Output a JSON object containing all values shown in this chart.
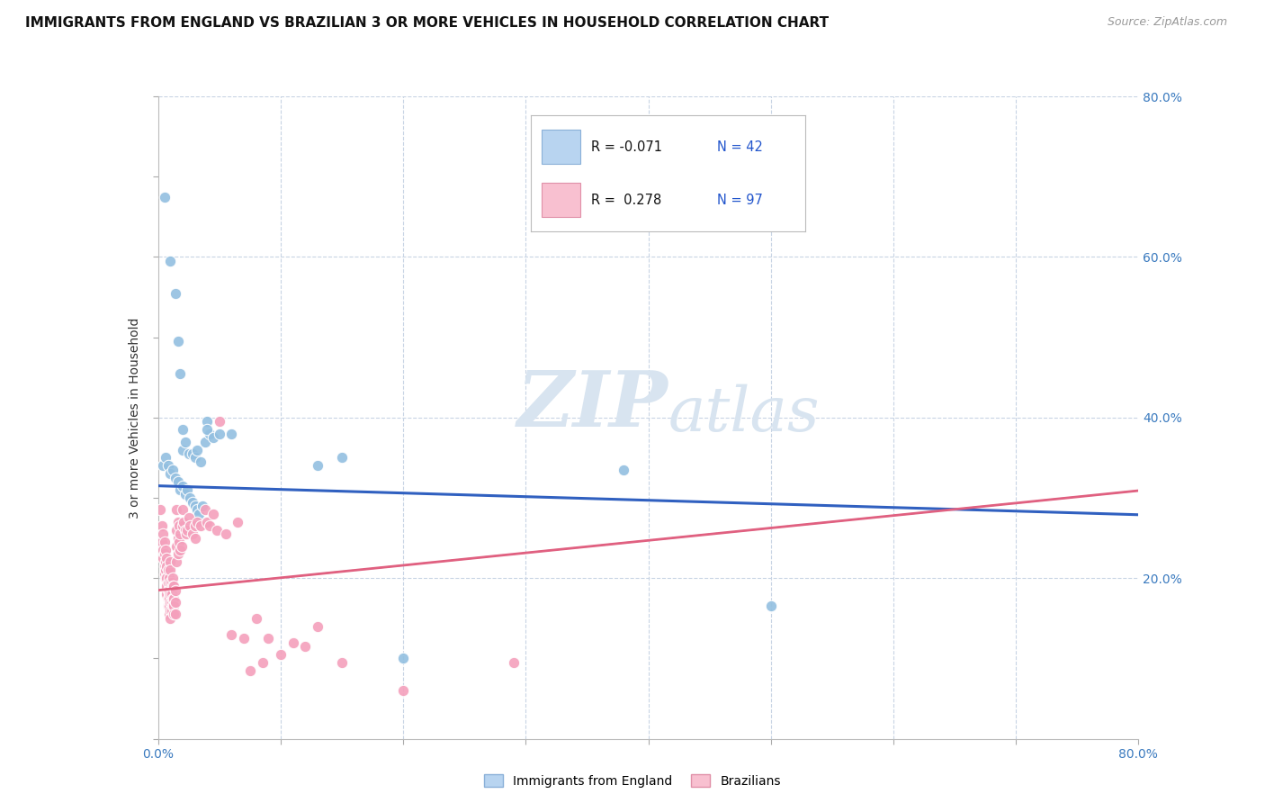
{
  "title": "IMMIGRANTS FROM ENGLAND VS BRAZILIAN 3 OR MORE VEHICLES IN HOUSEHOLD CORRELATION CHART",
  "source_text": "Source: ZipAtlas.com",
  "ylabel": "3 or more Vehicles in Household",
  "xlim": [
    0.0,
    0.8
  ],
  "ylim": [
    0.0,
    0.8
  ],
  "england_color": "#92bfe0",
  "brazil_color": "#f4a0bc",
  "england_line_color": "#3060c0",
  "brazil_line_color": "#e06080",
  "brazil_dash_color": "#d0a0b0",
  "watermark_zip": "ZIP",
  "watermark_atlas": "atlas",
  "watermark_color": "#d8e4f0",
  "background_color": "#ffffff",
  "grid_color": "#c8d4e4",
  "england_R": -0.071,
  "england_N": 42,
  "brazil_R": 0.278,
  "brazil_N": 97,
  "eng_intercept": 0.315,
  "eng_slope": -0.045,
  "bra_intercept": 0.185,
  "bra_slope": 0.155,
  "england_points": [
    [
      0.005,
      0.675
    ],
    [
      0.01,
      0.595
    ],
    [
      0.014,
      0.555
    ],
    [
      0.016,
      0.495
    ],
    [
      0.018,
      0.455
    ],
    [
      0.02,
      0.385
    ],
    [
      0.02,
      0.36
    ],
    [
      0.022,
      0.37
    ],
    [
      0.025,
      0.355
    ],
    [
      0.028,
      0.355
    ],
    [
      0.03,
      0.35
    ],
    [
      0.032,
      0.36
    ],
    [
      0.035,
      0.345
    ],
    [
      0.038,
      0.37
    ],
    [
      0.04,
      0.395
    ],
    [
      0.042,
      0.38
    ],
    [
      0.004,
      0.34
    ],
    [
      0.006,
      0.35
    ],
    [
      0.008,
      0.34
    ],
    [
      0.01,
      0.33
    ],
    [
      0.012,
      0.335
    ],
    [
      0.014,
      0.325
    ],
    [
      0.016,
      0.32
    ],
    [
      0.018,
      0.31
    ],
    [
      0.02,
      0.315
    ],
    [
      0.022,
      0.305
    ],
    [
      0.024,
      0.31
    ],
    [
      0.026,
      0.3
    ],
    [
      0.028,
      0.295
    ],
    [
      0.03,
      0.29
    ],
    [
      0.032,
      0.285
    ],
    [
      0.033,
      0.28
    ],
    [
      0.036,
      0.29
    ],
    [
      0.04,
      0.385
    ],
    [
      0.045,
      0.375
    ],
    [
      0.05,
      0.38
    ],
    [
      0.06,
      0.38
    ],
    [
      0.13,
      0.34
    ],
    [
      0.15,
      0.35
    ],
    [
      0.38,
      0.335
    ],
    [
      0.5,
      0.165
    ],
    [
      0.2,
      0.1
    ]
  ],
  "brazil_points": [
    [
      0.002,
      0.285
    ],
    [
      0.003,
      0.265
    ],
    [
      0.003,
      0.245
    ],
    [
      0.004,
      0.255
    ],
    [
      0.004,
      0.235
    ],
    [
      0.004,
      0.225
    ],
    [
      0.005,
      0.245
    ],
    [
      0.005,
      0.23
    ],
    [
      0.005,
      0.215
    ],
    [
      0.005,
      0.205
    ],
    [
      0.006,
      0.235
    ],
    [
      0.006,
      0.22
    ],
    [
      0.006,
      0.21
    ],
    [
      0.006,
      0.2
    ],
    [
      0.007,
      0.225
    ],
    [
      0.007,
      0.215
    ],
    [
      0.007,
      0.2
    ],
    [
      0.007,
      0.19
    ],
    [
      0.007,
      0.18
    ],
    [
      0.008,
      0.21
    ],
    [
      0.008,
      0.195
    ],
    [
      0.008,
      0.185
    ],
    [
      0.008,
      0.175
    ],
    [
      0.008,
      0.165
    ],
    [
      0.009,
      0.2
    ],
    [
      0.009,
      0.185
    ],
    [
      0.009,
      0.175
    ],
    [
      0.009,
      0.165
    ],
    [
      0.009,
      0.155
    ],
    [
      0.01,
      0.22
    ],
    [
      0.01,
      0.21
    ],
    [
      0.01,
      0.195
    ],
    [
      0.01,
      0.18
    ],
    [
      0.01,
      0.17
    ],
    [
      0.01,
      0.16
    ],
    [
      0.01,
      0.15
    ],
    [
      0.011,
      0.195
    ],
    [
      0.011,
      0.18
    ],
    [
      0.011,
      0.17
    ],
    [
      0.011,
      0.16
    ],
    [
      0.012,
      0.2
    ],
    [
      0.012,
      0.19
    ],
    [
      0.012,
      0.175
    ],
    [
      0.012,
      0.165
    ],
    [
      0.013,
      0.19
    ],
    [
      0.013,
      0.175
    ],
    [
      0.013,
      0.165
    ],
    [
      0.013,
      0.155
    ],
    [
      0.014,
      0.185
    ],
    [
      0.014,
      0.17
    ],
    [
      0.014,
      0.155
    ],
    [
      0.015,
      0.285
    ],
    [
      0.015,
      0.26
    ],
    [
      0.015,
      0.24
    ],
    [
      0.015,
      0.22
    ],
    [
      0.016,
      0.27
    ],
    [
      0.016,
      0.25
    ],
    [
      0.016,
      0.23
    ],
    [
      0.017,
      0.265
    ],
    [
      0.017,
      0.245
    ],
    [
      0.018,
      0.255
    ],
    [
      0.018,
      0.235
    ],
    [
      0.019,
      0.24
    ],
    [
      0.02,
      0.285
    ],
    [
      0.02,
      0.265
    ],
    [
      0.021,
      0.27
    ],
    [
      0.022,
      0.26
    ],
    [
      0.023,
      0.255
    ],
    [
      0.024,
      0.26
    ],
    [
      0.025,
      0.275
    ],
    [
      0.026,
      0.265
    ],
    [
      0.028,
      0.255
    ],
    [
      0.03,
      0.25
    ],
    [
      0.03,
      0.265
    ],
    [
      0.032,
      0.27
    ],
    [
      0.035,
      0.265
    ],
    [
      0.038,
      0.285
    ],
    [
      0.04,
      0.27
    ],
    [
      0.042,
      0.265
    ],
    [
      0.045,
      0.28
    ],
    [
      0.048,
      0.26
    ],
    [
      0.05,
      0.395
    ],
    [
      0.055,
      0.255
    ],
    [
      0.06,
      0.13
    ],
    [
      0.065,
      0.27
    ],
    [
      0.07,
      0.125
    ],
    [
      0.075,
      0.085
    ],
    [
      0.08,
      0.15
    ],
    [
      0.085,
      0.095
    ],
    [
      0.09,
      0.125
    ],
    [
      0.1,
      0.105
    ],
    [
      0.11,
      0.12
    ],
    [
      0.12,
      0.115
    ],
    [
      0.13,
      0.14
    ],
    [
      0.15,
      0.095
    ],
    [
      0.2,
      0.06
    ],
    [
      0.29,
      0.095
    ]
  ]
}
